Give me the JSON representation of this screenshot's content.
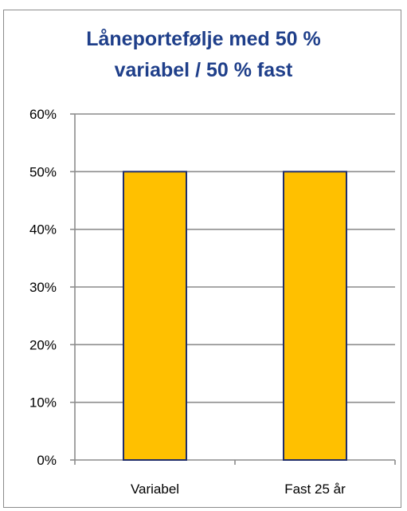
{
  "chart_data": {
    "type": "bar",
    "title_lines": [
      "Låneportefølje med 50 %",
      "variabel / 50 % fast"
    ],
    "categories": [
      "Variabel",
      "Fast 25 år"
    ],
    "values": [
      50,
      50
    ],
    "ylim": [
      0,
      60
    ],
    "yticks": [
      0,
      10,
      20,
      30,
      40,
      50,
      60
    ],
    "ytick_labels": [
      "0%",
      "10%",
      "20%",
      "30%",
      "40%",
      "50%",
      "60%"
    ],
    "grid": true,
    "bar_color": "#ffc000",
    "bar_edge_color": "#1f2d6b",
    "title_color": "#1f3f8a"
  }
}
